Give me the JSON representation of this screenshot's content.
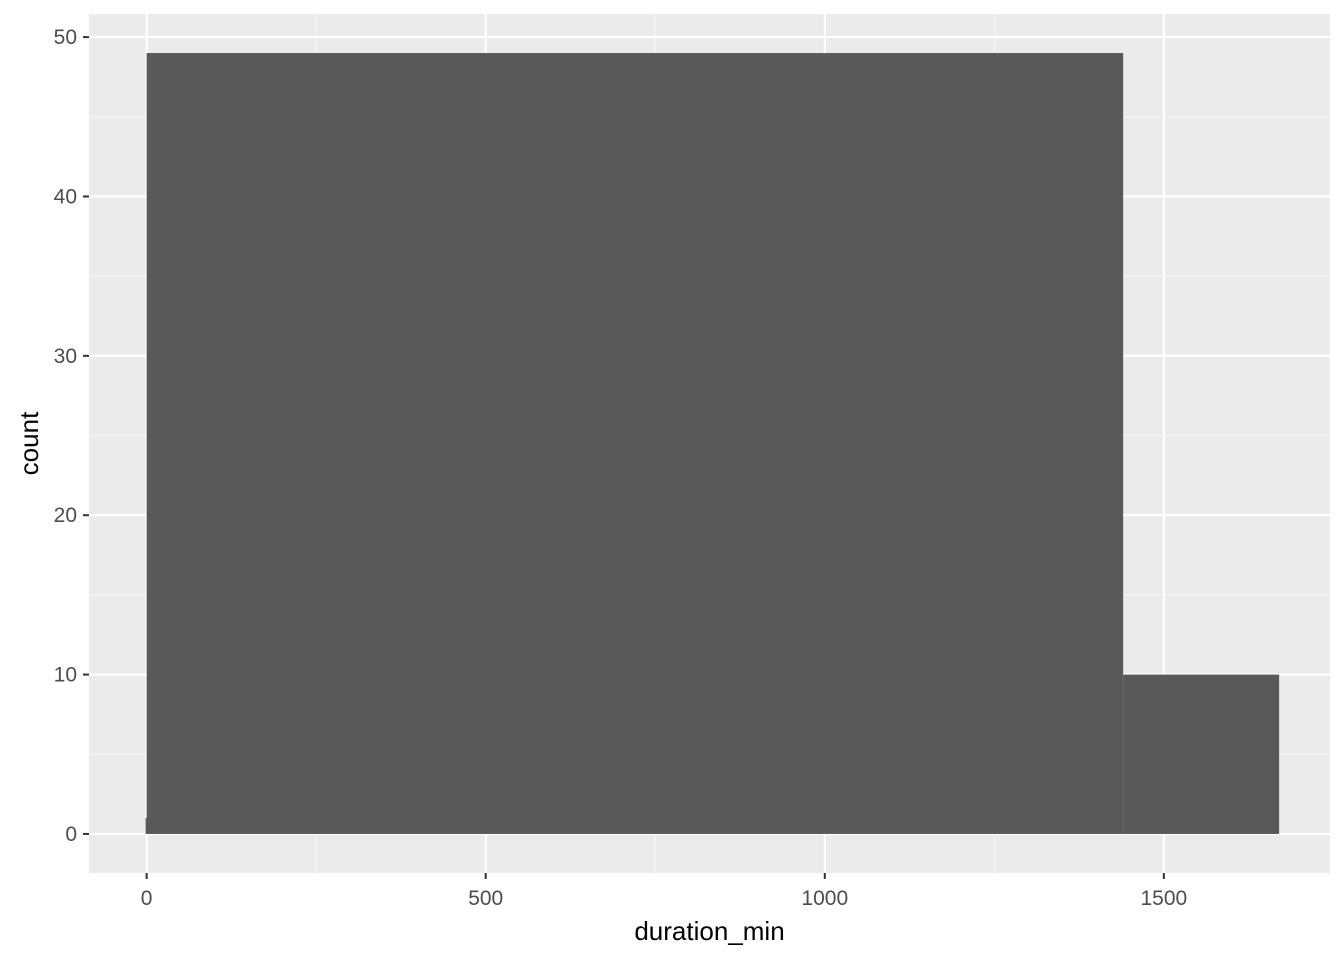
{
  "chart_data": {
    "type": "bar",
    "subtype": "histogram",
    "title": "",
    "xlabel": "duration_min",
    "ylabel": "count",
    "xlim": [
      -85,
      1745
    ],
    "ylim": [
      -2.45,
      51.45
    ],
    "x_ticks": [
      0,
      500,
      1000,
      1500
    ],
    "x_tick_labels": [
      "0",
      "500",
      "1000",
      "1500"
    ],
    "y_ticks": [
      0,
      10,
      20,
      30,
      40,
      50
    ],
    "y_tick_labels": [
      "0",
      "10",
      "20",
      "30",
      "40",
      "50"
    ],
    "bins": [
      {
        "x0": 0,
        "x1": 1440,
        "count": 49
      },
      {
        "x0": 1440,
        "x1": 1670,
        "count": 10
      }
    ],
    "baseline_tick": {
      "x": 0,
      "count": 1
    },
    "grid": true,
    "legend": "none",
    "colors": {
      "panel_background": "#ebebeb",
      "grid_major": "#ffffff",
      "grid_minor": "#f5f5f5",
      "bar_fill": "#595959",
      "tick_text": "#4d4d4d",
      "tick_mark": "#333333",
      "axis_title": "#000000"
    }
  }
}
